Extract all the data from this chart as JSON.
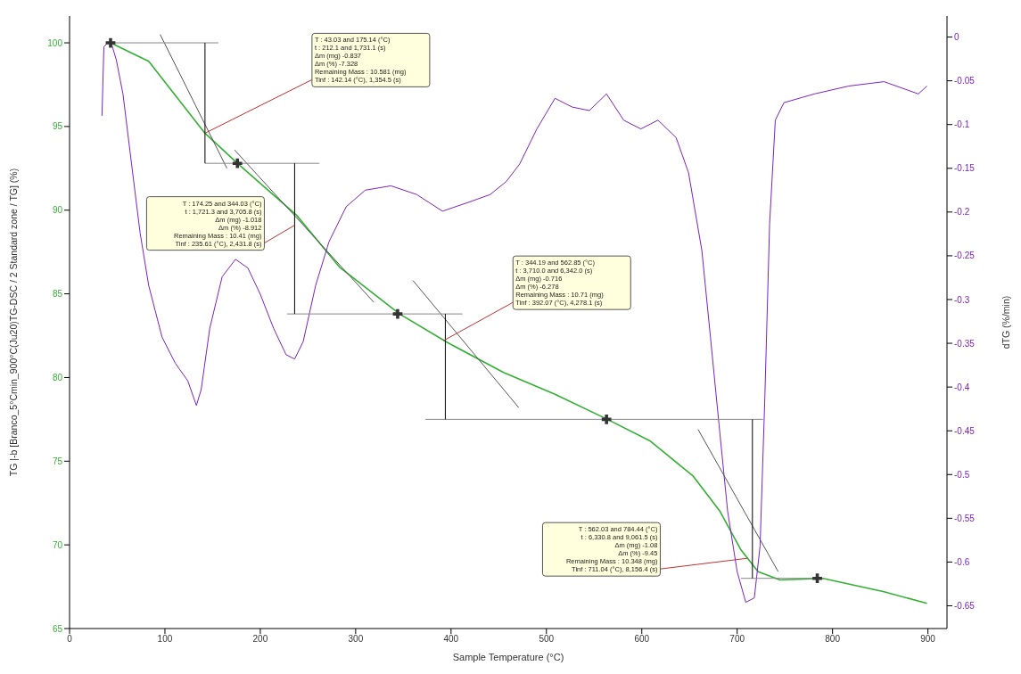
{
  "chart_data": {
    "type": "line",
    "xlabel": "Sample Temperature (°C)",
    "ylabel": "TG |-b [Branco_5°Cmin_900°C(Ju20)TG-DSC / 2 Standard zone / TG] (%)",
    "y2label": "dTG (%/min)",
    "xlim": [
      0,
      920
    ],
    "xticks": [
      0,
      100,
      200,
      300,
      400,
      500,
      600,
      700,
      800,
      900
    ],
    "ylim": [
      65,
      101.6
    ],
    "yticks": [
      65,
      70,
      75,
      80,
      85,
      90,
      95,
      100
    ],
    "y2lim": [
      -0.676,
      0.024
    ],
    "y2ticks": [
      0,
      -0.05,
      -0.1,
      -0.15,
      -0.2,
      -0.25,
      -0.3,
      -0.35,
      -0.4,
      -0.45,
      -0.5,
      -0.55,
      -0.6,
      -0.65
    ],
    "marker": "none",
    "line_style": "solid",
    "series": [
      {
        "color": "#33b033",
        "x": [
          43,
          83,
          142,
          176,
          238,
          283,
          346,
          396,
          455,
          509,
          564,
          609,
          654,
          682,
          704,
          722,
          745,
          790,
          854,
          899
        ],
        "values": [
          100,
          98.9,
          94.6,
          92.8,
          89.7,
          86.6,
          83.8,
          82.1,
          80.3,
          79.0,
          77.5,
          76.2,
          74.1,
          72.0,
          69.7,
          68.4,
          67.9,
          68.0,
          67.2,
          66.5
        ]
      },
      {
        "axis": "y2",
        "color": "#7b22c4",
        "x": [
          34,
          36,
          43,
          49,
          56,
          65,
          74,
          83,
          97,
          111,
          124,
          133,
          138,
          147,
          160,
          174,
          187,
          200,
          214,
          227,
          236,
          245,
          258,
          272,
          290,
          310,
          337,
          364,
          391,
          418,
          441,
          458,
          472,
          490,
          509,
          527,
          545,
          563,
          581,
          599,
          617,
          636,
          649,
          663,
          672,
          681,
          690,
          700,
          709,
          718,
          724,
          729,
          734,
          740,
          749,
          781,
          817,
          854,
          890,
          899
        ],
        "values": [
          -0.09,
          -0.011,
          -0.004,
          -0.026,
          -0.065,
          -0.145,
          -0.224,
          -0.284,
          -0.343,
          -0.373,
          -0.393,
          -0.421,
          -0.403,
          -0.333,
          -0.274,
          -0.254,
          -0.264,
          -0.294,
          -0.333,
          -0.363,
          -0.368,
          -0.348,
          -0.284,
          -0.234,
          -0.194,
          -0.175,
          -0.17,
          -0.18,
          -0.199,
          -0.189,
          -0.18,
          -0.165,
          -0.145,
          -0.105,
          -0.07,
          -0.08,
          -0.084,
          -0.065,
          -0.095,
          -0.105,
          -0.095,
          -0.115,
          -0.155,
          -0.244,
          -0.343,
          -0.443,
          -0.542,
          -0.611,
          -0.646,
          -0.641,
          -0.582,
          -0.413,
          -0.214,
          -0.095,
          -0.075,
          -0.065,
          -0.056,
          -0.051,
          -0.065,
          -0.056
        ]
      },
      {
        "color": "#555555",
        "x": [
          95,
          165
        ],
        "values": [
          100.5,
          92.5
        ]
      },
      {
        "color": "#555555",
        "x": [
          173,
          319
        ],
        "values": [
          93.6,
          84.5
        ]
      },
      {
        "color": "#555555",
        "x": [
          360,
          471
        ],
        "values": [
          85.8,
          78.2
        ]
      },
      {
        "color": "#555555",
        "x": [
          659,
          743
        ],
        "values": [
          76.9,
          68.4
        ]
      },
      {
        "color": "#888888",
        "x": [
          38,
          156
        ],
        "values": [
          100,
          100
        ]
      },
      {
        "color": "#888888",
        "x": [
          142,
          262
        ],
        "values": [
          92.8,
          92.8
        ]
      },
      {
        "color": "#888888",
        "x": [
          228,
          412
        ],
        "values": [
          83.8,
          83.8
        ]
      },
      {
        "color": "#888888",
        "x": [
          373,
          727
        ],
        "values": [
          77.5,
          77.5
        ]
      },
      {
        "color": "#888888",
        "x": [
          704,
          790
        ],
        "values": [
          68,
          68
        ]
      },
      {
        "color": "#000000",
        "x": [
          142,
          142
        ],
        "values": [
          100,
          92.8
        ]
      },
      {
        "color": "#000000",
        "x": [
          236,
          236
        ],
        "values": [
          92.8,
          83.8
        ]
      },
      {
        "color": "#000000",
        "x": [
          394,
          394
        ],
        "values": [
          83.8,
          77.5
        ]
      },
      {
        "color": "#000000",
        "x": [
          716,
          716
        ],
        "values": [
          77.5,
          68
        ]
      },
      {
        "type": "scatter",
        "marker": "cross",
        "color": "#333333",
        "x": [
          43,
          176,
          344,
          563,
          784
        ],
        "values": [
          100,
          92.8,
          83.8,
          77.5,
          68
        ]
      }
    ],
    "annotations": [
      {
        "text": "T : 43.03 and 175.14 (°C)\nt : 212.1 and 1,731.1 (s)\nΔm (mg) -0.837\nΔm (%) -7.328\nRemaining Mass : 10.581 (mg)\nTinf : 142.14 (°C), 1,354.5 (s)",
        "x": 142,
        "y": 94.6
      },
      {
        "text": "T : 174.25 and 344.03 (°C)\nt : 1,721.3 and 3,705.8 (s)\nΔm (mg) -1.018\nΔm (%) -8.912\nRemaining Mass : 10.41 (mg)\nTinf : 235.61 (°C), 2,431.8 (s)",
        "x": 236,
        "y": 89.1
      },
      {
        "text": "T : 344.19 and 562.85 (°C)\nt : 3,710.0 and 6,342.0 (s)\nΔm (mg) -0.716\nΔm (%) -6.278\nRemaining Mass : 10.71 (mg)\nTinf : 392.07 (°C), 4,278.1 (s)",
        "x": 392,
        "y": 82.2
      },
      {
        "text": "T : 562.03 and 784.44 (°C)\nt : 6,330.8 and 9,061.5 (s)\nΔm (mg) -1.08\nΔm (%) -9.45\nRemaining Mass : 10.348 (mg)\nTinf : 711.04 (°C), 8,156.4 (s)",
        "x": 711,
        "y": 69.2
      }
    ]
  }
}
